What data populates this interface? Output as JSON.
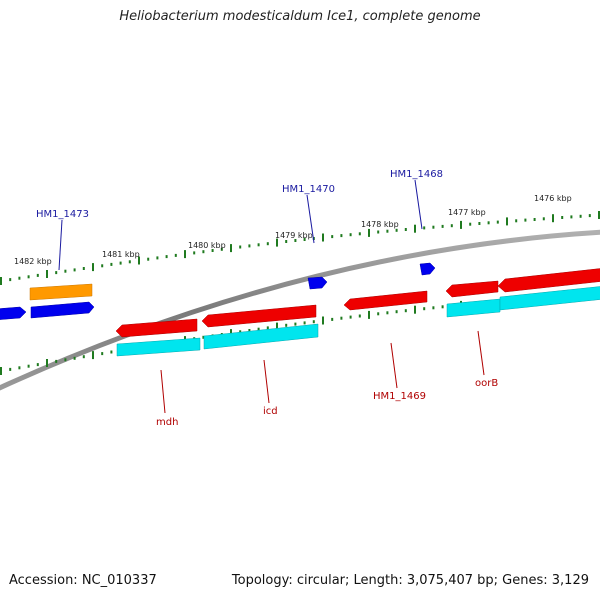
{
  "title": "Heliobacterium modesticaldum Ice1, complete genome",
  "footer": {
    "accession": "Accession: NC_010337",
    "stats": "Topology: circular; Length: 3,075,407 bp; Genes: 3,129"
  },
  "colors": {
    "backbone": "#8a8a8a",
    "forward_gene": "#0000ee",
    "forward_gene_alt": "#ff9900",
    "reverse_gene": "#ee0000",
    "reverse_cds": "#00e5ee",
    "tick": "#1f7a1f",
    "forward_label": "#1a1aa0",
    "reverse_label": "#b00000"
  },
  "scale_labels": [
    "1482 kbp",
    "1481 kbp",
    "1480 kbp",
    "1479 kbp",
    "1478 kbp",
    "1477 kbp",
    "1476 kbp"
  ],
  "forward_gene_labels": [
    "HM1_1473",
    "HM1_1470",
    "HM1_1468"
  ],
  "reverse_gene_labels": [
    "mdh",
    "icd",
    "HM1_1469",
    "oorB"
  ]
}
